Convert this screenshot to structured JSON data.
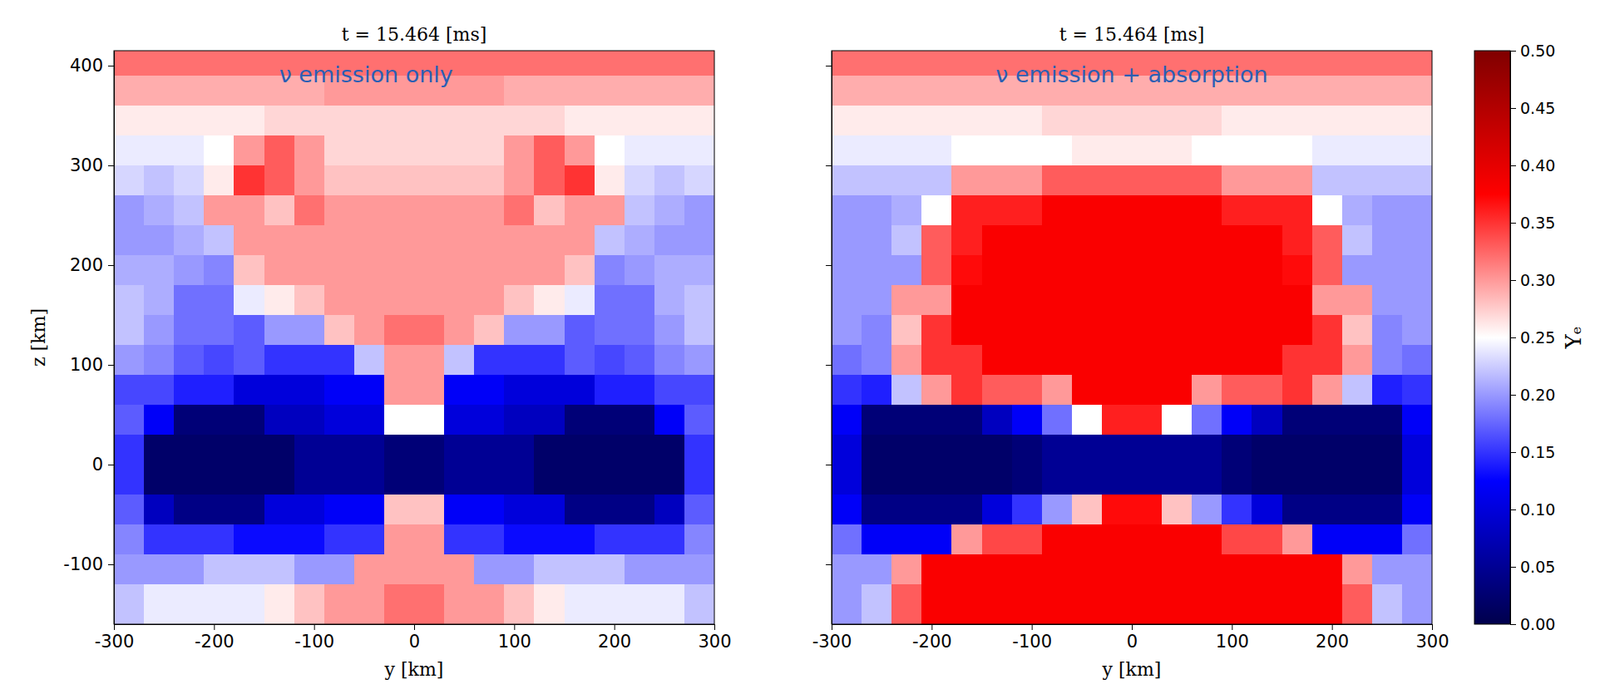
{
  "chart_data": [
    {
      "type": "heatmap",
      "title": "t = 15.464 [ms]",
      "annotation": "ν emission only",
      "x_label": "y [km]",
      "y_label": "z [km]",
      "xlim": [
        -300,
        300
      ],
      "ylim": [
        -160,
        415
      ],
      "xticks": [
        -300,
        -200,
        -100,
        0,
        100,
        200,
        300
      ],
      "yticks": [
        -100,
        0,
        100,
        200,
        300,
        400
      ],
      "x": [
        -285,
        -255,
        -225,
        -195,
        -165,
        -135,
        -105,
        -75,
        -45,
        -15,
        15,
        45,
        75,
        105,
        135,
        165,
        195,
        225,
        255,
        285
      ],
      "y": [
        405,
        375,
        345,
        315,
        285,
        255,
        225,
        195,
        165,
        135,
        105,
        75,
        45,
        15,
        -15,
        -45,
        -75,
        -105,
        -135,
        -165
      ],
      "cells": [
        [
          0.32,
          0.32,
          0.32,
          0.32,
          0.32,
          0.32,
          0.32,
          0.32,
          0.32,
          0.32,
          0.32,
          0.32,
          0.32,
          0.32,
          0.32,
          0.32,
          0.32,
          0.32,
          0.32,
          0.32
        ],
        [
          0.29,
          0.29,
          0.29,
          0.29,
          0.29,
          0.29,
          0.29,
          0.3,
          0.3,
          0.3,
          0.3,
          0.3,
          0.3,
          0.29,
          0.29,
          0.29,
          0.29,
          0.29,
          0.29,
          0.29
        ],
        [
          0.26,
          0.26,
          0.26,
          0.26,
          0.26,
          0.27,
          0.27,
          0.27,
          0.27,
          0.27,
          0.27,
          0.27,
          0.27,
          0.27,
          0.27,
          0.26,
          0.26,
          0.26,
          0.26,
          0.26
        ],
        [
          0.24,
          0.24,
          0.24,
          0.25,
          0.3,
          0.33,
          0.3,
          0.27,
          0.27,
          0.27,
          0.27,
          0.27,
          0.27,
          0.3,
          0.33,
          0.3,
          0.25,
          0.24,
          0.24,
          0.24
        ],
        [
          0.23,
          0.22,
          0.23,
          0.26,
          0.35,
          0.33,
          0.3,
          0.28,
          0.28,
          0.28,
          0.28,
          0.28,
          0.28,
          0.3,
          0.33,
          0.35,
          0.26,
          0.23,
          0.22,
          0.23
        ],
        [
          0.2,
          0.21,
          0.22,
          0.3,
          0.3,
          0.28,
          0.32,
          0.3,
          0.3,
          0.3,
          0.3,
          0.3,
          0.3,
          0.32,
          0.28,
          0.3,
          0.3,
          0.22,
          0.21,
          0.2
        ],
        [
          0.2,
          0.2,
          0.21,
          0.22,
          0.3,
          0.3,
          0.3,
          0.3,
          0.3,
          0.3,
          0.3,
          0.3,
          0.3,
          0.3,
          0.3,
          0.3,
          0.22,
          0.21,
          0.2,
          0.2
        ],
        [
          0.21,
          0.21,
          0.2,
          0.19,
          0.28,
          0.3,
          0.3,
          0.3,
          0.3,
          0.3,
          0.3,
          0.3,
          0.3,
          0.3,
          0.3,
          0.28,
          0.19,
          0.2,
          0.21,
          0.21
        ],
        [
          0.22,
          0.21,
          0.18,
          0.18,
          0.24,
          0.26,
          0.28,
          0.3,
          0.3,
          0.3,
          0.3,
          0.3,
          0.3,
          0.28,
          0.26,
          0.24,
          0.18,
          0.18,
          0.21,
          0.22
        ],
        [
          0.22,
          0.2,
          0.18,
          0.18,
          0.17,
          0.2,
          0.2,
          0.28,
          0.3,
          0.32,
          0.32,
          0.3,
          0.28,
          0.2,
          0.2,
          0.17,
          0.18,
          0.18,
          0.2,
          0.22
        ],
        [
          0.2,
          0.19,
          0.17,
          0.16,
          0.17,
          0.15,
          0.15,
          0.15,
          0.22,
          0.3,
          0.3,
          0.22,
          0.15,
          0.15,
          0.15,
          0.17,
          0.16,
          0.17,
          0.19,
          0.2
        ],
        [
          0.16,
          0.16,
          0.14,
          0.14,
          0.1,
          0.1,
          0.1,
          0.12,
          0.12,
          0.3,
          0.3,
          0.12,
          0.12,
          0.1,
          0.1,
          0.1,
          0.14,
          0.14,
          0.16,
          0.16
        ],
        [
          0.17,
          0.12,
          0.03,
          0.03,
          0.03,
          0.08,
          0.08,
          0.1,
          0.1,
          0.25,
          0.25,
          0.1,
          0.1,
          0.08,
          0.08,
          0.03,
          0.03,
          0.03,
          0.12,
          0.17
        ],
        [
          0.15,
          0.02,
          0.02,
          0.02,
          0.02,
          0.02,
          0.05,
          0.05,
          0.05,
          0.03,
          0.03,
          0.05,
          0.05,
          0.05,
          0.02,
          0.02,
          0.02,
          0.02,
          0.02,
          0.15
        ],
        [
          0.15,
          0.02,
          0.02,
          0.02,
          0.02,
          0.02,
          0.05,
          0.05,
          0.05,
          0.03,
          0.03,
          0.05,
          0.05,
          0.05,
          0.02,
          0.02,
          0.02,
          0.02,
          0.02,
          0.15
        ],
        [
          0.17,
          0.08,
          0.04,
          0.04,
          0.04,
          0.1,
          0.1,
          0.12,
          0.12,
          0.28,
          0.28,
          0.12,
          0.12,
          0.1,
          0.1,
          0.04,
          0.04,
          0.04,
          0.08,
          0.17
        ],
        [
          0.19,
          0.15,
          0.15,
          0.15,
          0.13,
          0.13,
          0.13,
          0.15,
          0.15,
          0.3,
          0.3,
          0.15,
          0.15,
          0.13,
          0.13,
          0.13,
          0.15,
          0.15,
          0.15,
          0.19
        ],
        [
          0.2,
          0.2,
          0.2,
          0.22,
          0.22,
          0.22,
          0.2,
          0.2,
          0.3,
          0.3,
          0.3,
          0.3,
          0.2,
          0.2,
          0.22,
          0.22,
          0.22,
          0.2,
          0.2,
          0.2
        ],
        [
          0.22,
          0.24,
          0.24,
          0.24,
          0.24,
          0.26,
          0.28,
          0.3,
          0.3,
          0.32,
          0.32,
          0.3,
          0.3,
          0.28,
          0.26,
          0.24,
          0.24,
          0.24,
          0.24,
          0.22
        ],
        [
          0.22,
          0.24,
          0.24,
          0.24,
          0.24,
          0.26,
          0.28,
          0.3,
          0.3,
          0.32,
          0.32,
          0.3,
          0.3,
          0.28,
          0.26,
          0.24,
          0.24,
          0.24,
          0.24,
          0.22
        ]
      ]
    },
    {
      "type": "heatmap",
      "title": "t = 15.464 [ms]",
      "annotation": "ν emission + absorption",
      "x_label": "y [km]",
      "tick_labels": "x",
      "xlim": [
        -300,
        300
      ],
      "ylim": [
        -160,
        415
      ],
      "xticks": [
        -300,
        -200,
        -100,
        0,
        100,
        200,
        300
      ],
      "yticks": [
        -100,
        0,
        100,
        200,
        300,
        400
      ],
      "x": [
        -285,
        -255,
        -225,
        -195,
        -165,
        -135,
        -105,
        -75,
        -45,
        -15,
        15,
        45,
        75,
        105,
        135,
        165,
        195,
        225,
        255,
        285
      ],
      "y": [
        405,
        375,
        345,
        315,
        285,
        255,
        225,
        195,
        165,
        135,
        105,
        75,
        45,
        15,
        -15,
        -45,
        -75,
        -105,
        -135,
        -165
      ],
      "cells": [
        [
          0.32,
          0.32,
          0.32,
          0.32,
          0.32,
          0.32,
          0.32,
          0.32,
          0.32,
          0.32,
          0.32,
          0.32,
          0.32,
          0.32,
          0.32,
          0.32,
          0.32,
          0.32,
          0.32,
          0.32
        ],
        [
          0.29,
          0.29,
          0.29,
          0.29,
          0.29,
          0.29,
          0.29,
          0.29,
          0.29,
          0.29,
          0.29,
          0.29,
          0.29,
          0.29,
          0.29,
          0.29,
          0.29,
          0.29,
          0.29,
          0.29
        ],
        [
          0.26,
          0.26,
          0.26,
          0.26,
          0.26,
          0.26,
          0.26,
          0.27,
          0.27,
          0.27,
          0.27,
          0.27,
          0.27,
          0.26,
          0.26,
          0.26,
          0.26,
          0.26,
          0.26,
          0.26
        ],
        [
          0.24,
          0.24,
          0.24,
          0.24,
          0.25,
          0.25,
          0.25,
          0.25,
          0.26,
          0.26,
          0.26,
          0.26,
          0.25,
          0.25,
          0.25,
          0.25,
          0.24,
          0.24,
          0.24,
          0.24
        ],
        [
          0.22,
          0.22,
          0.22,
          0.22,
          0.3,
          0.3,
          0.3,
          0.33,
          0.33,
          0.33,
          0.33,
          0.33,
          0.33,
          0.3,
          0.3,
          0.3,
          0.22,
          0.22,
          0.22,
          0.22
        ],
        [
          0.2,
          0.2,
          0.21,
          0.25,
          0.36,
          0.36,
          0.36,
          0.38,
          0.38,
          0.38,
          0.38,
          0.38,
          0.38,
          0.36,
          0.36,
          0.36,
          0.25,
          0.21,
          0.2,
          0.2
        ],
        [
          0.2,
          0.2,
          0.22,
          0.33,
          0.36,
          0.38,
          0.38,
          0.38,
          0.38,
          0.38,
          0.38,
          0.38,
          0.38,
          0.38,
          0.38,
          0.36,
          0.33,
          0.22,
          0.2,
          0.2
        ],
        [
          0.2,
          0.2,
          0.2,
          0.33,
          0.37,
          0.38,
          0.38,
          0.38,
          0.38,
          0.38,
          0.38,
          0.38,
          0.38,
          0.38,
          0.38,
          0.37,
          0.33,
          0.2,
          0.2,
          0.2
        ],
        [
          0.2,
          0.2,
          0.3,
          0.3,
          0.38,
          0.38,
          0.38,
          0.38,
          0.38,
          0.38,
          0.38,
          0.38,
          0.38,
          0.38,
          0.38,
          0.38,
          0.3,
          0.3,
          0.2,
          0.2
        ],
        [
          0.2,
          0.19,
          0.28,
          0.35,
          0.38,
          0.38,
          0.38,
          0.38,
          0.38,
          0.38,
          0.38,
          0.38,
          0.38,
          0.38,
          0.38,
          0.38,
          0.35,
          0.28,
          0.19,
          0.2
        ],
        [
          0.18,
          0.19,
          0.3,
          0.35,
          0.35,
          0.38,
          0.38,
          0.38,
          0.38,
          0.38,
          0.38,
          0.38,
          0.38,
          0.38,
          0.38,
          0.35,
          0.35,
          0.3,
          0.19,
          0.18
        ],
        [
          0.15,
          0.14,
          0.22,
          0.3,
          0.35,
          0.33,
          0.33,
          0.3,
          0.38,
          0.38,
          0.38,
          0.38,
          0.3,
          0.33,
          0.33,
          0.35,
          0.3,
          0.22,
          0.14,
          0.15
        ],
        [
          0.12,
          0.03,
          0.03,
          0.03,
          0.03,
          0.08,
          0.12,
          0.18,
          0.25,
          0.36,
          0.36,
          0.25,
          0.18,
          0.12,
          0.08,
          0.03,
          0.03,
          0.03,
          0.03,
          0.12
        ],
        [
          0.1,
          0.02,
          0.02,
          0.02,
          0.02,
          0.02,
          0.03,
          0.05,
          0.05,
          0.05,
          0.05,
          0.05,
          0.05,
          0.03,
          0.02,
          0.02,
          0.02,
          0.02,
          0.02,
          0.1
        ],
        [
          0.1,
          0.02,
          0.02,
          0.02,
          0.02,
          0.02,
          0.03,
          0.05,
          0.05,
          0.05,
          0.05,
          0.05,
          0.05,
          0.03,
          0.02,
          0.02,
          0.02,
          0.02,
          0.02,
          0.1
        ],
        [
          0.12,
          0.04,
          0.04,
          0.04,
          0.04,
          0.1,
          0.15,
          0.2,
          0.28,
          0.37,
          0.37,
          0.28,
          0.2,
          0.15,
          0.1,
          0.04,
          0.04,
          0.04,
          0.04,
          0.12
        ],
        [
          0.18,
          0.12,
          0.12,
          0.12,
          0.3,
          0.34,
          0.34,
          0.38,
          0.38,
          0.38,
          0.38,
          0.38,
          0.38,
          0.34,
          0.34,
          0.3,
          0.12,
          0.12,
          0.12,
          0.18
        ],
        [
          0.2,
          0.2,
          0.3,
          0.38,
          0.38,
          0.38,
          0.38,
          0.38,
          0.38,
          0.38,
          0.38,
          0.38,
          0.38,
          0.38,
          0.38,
          0.38,
          0.38,
          0.3,
          0.2,
          0.2
        ],
        [
          0.2,
          0.22,
          0.33,
          0.38,
          0.38,
          0.38,
          0.38,
          0.38,
          0.38,
          0.38,
          0.38,
          0.38,
          0.38,
          0.38,
          0.38,
          0.38,
          0.38,
          0.33,
          0.22,
          0.2
        ],
        [
          0.2,
          0.22,
          0.33,
          0.38,
          0.38,
          0.38,
          0.38,
          0.38,
          0.38,
          0.38,
          0.38,
          0.38,
          0.38,
          0.38,
          0.38,
          0.38,
          0.38,
          0.33,
          0.22,
          0.2
        ]
      ],
      "colorbar": {
        "label": "Yₑ",
        "range": [
          0,
          0.5
        ],
        "ticks": [
          {
            "value": 0,
            "label": "0.00"
          },
          {
            "value": 0.05,
            "label": "0.05"
          },
          {
            "value": 0.1,
            "label": "0.10"
          },
          {
            "value": 0.15,
            "label": "0.15"
          },
          {
            "value": 0.2,
            "label": "0.20"
          },
          {
            "value": 0.25,
            "label": "0.25"
          },
          {
            "value": 0.3,
            "label": "0.30"
          },
          {
            "value": 0.35,
            "label": "0.35"
          },
          {
            "value": 0.4,
            "label": "0.40"
          },
          {
            "value": 0.45,
            "label": "0.45"
          },
          {
            "value": 0.5,
            "label": "0.50"
          }
        ]
      }
    }
  ]
}
